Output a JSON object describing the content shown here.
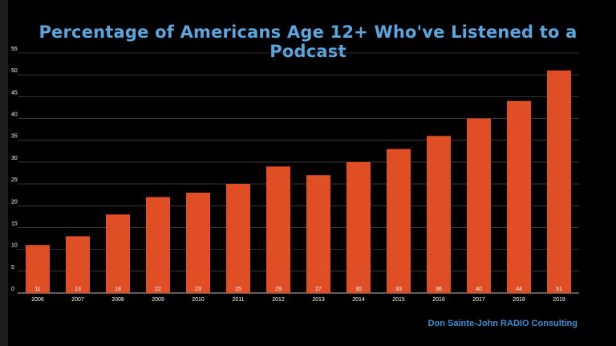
{
  "chart_data": {
    "type": "bar",
    "title": "Percentage of Americans Age 12+ Who've Listened to a Podcast",
    "categories": [
      "2006",
      "2007",
      "2008",
      "2009",
      "2010",
      "2011",
      "2012",
      "2013",
      "2014",
      "2015",
      "2016",
      "2017",
      "2018",
      "2019"
    ],
    "values": [
      11,
      13,
      18,
      22,
      23,
      25,
      29,
      27,
      30,
      33,
      36,
      40,
      44,
      51
    ],
    "xlabel": "",
    "ylabel": "",
    "ylim": [
      0,
      55
    ],
    "yticks": [
      0,
      5,
      10,
      15,
      20,
      25,
      30,
      35,
      40,
      45,
      50,
      55
    ],
    "grid": true,
    "legend": "none",
    "data_labels": true
  },
  "credit": "Don Sainte-John RADIO Consulting",
  "colors": {
    "background": "#000000",
    "bar": "#e04e26",
    "title": "#5aa7e0",
    "credit": "#3d8fd6",
    "grid": "#5c5c5c",
    "tick_text": "#ffffff",
    "bar_label": "#ffffff"
  }
}
